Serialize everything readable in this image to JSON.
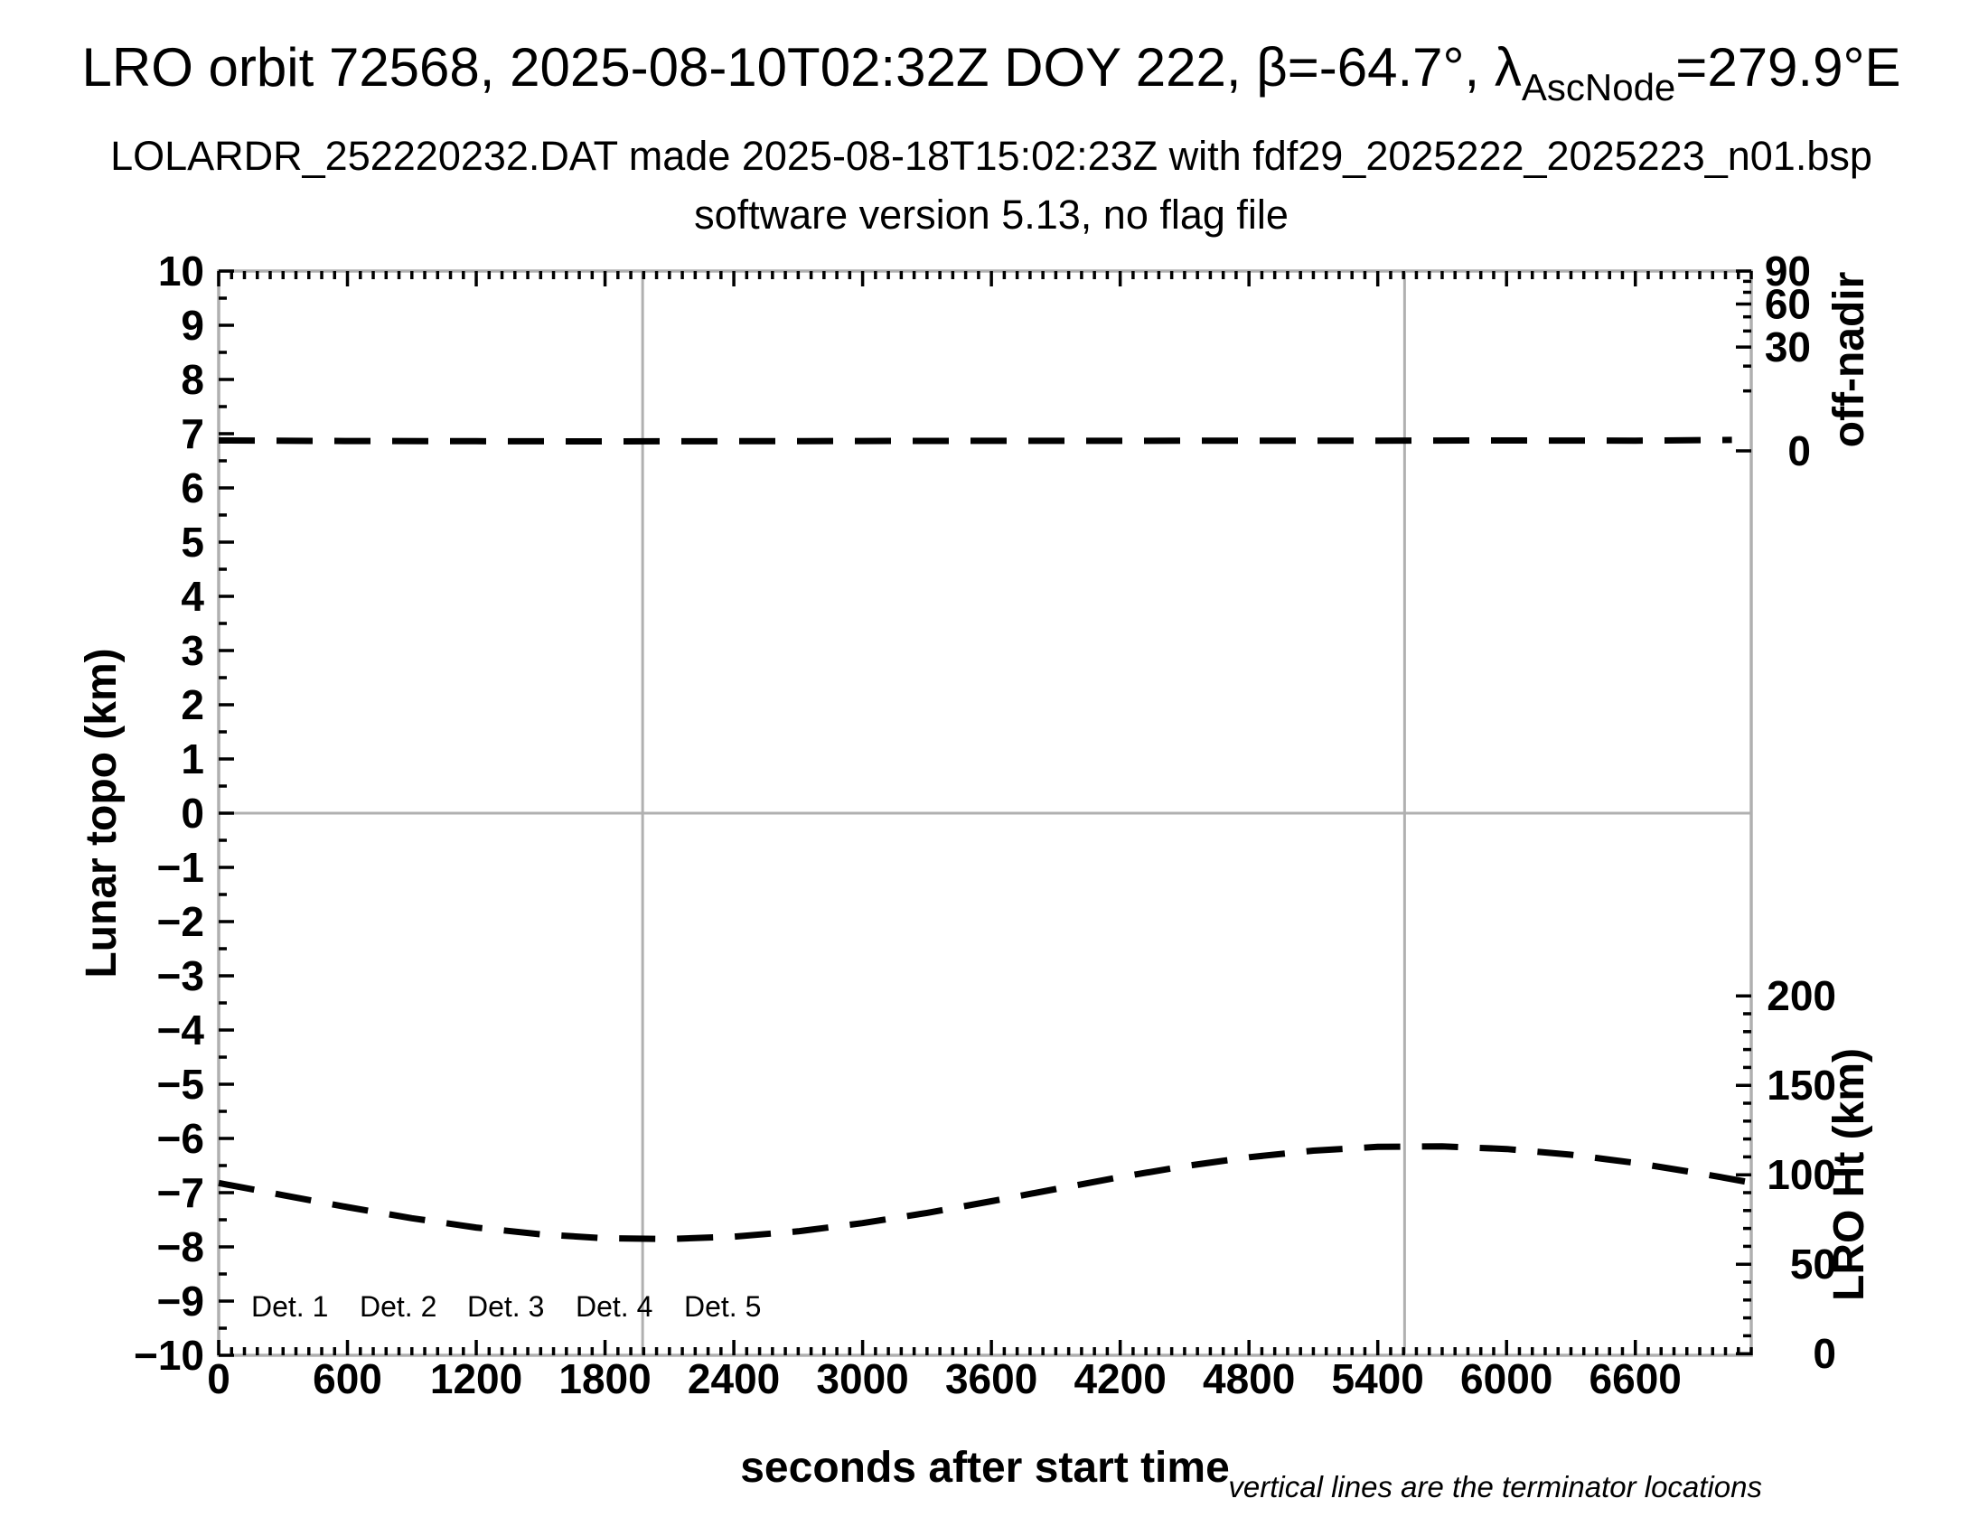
{
  "header": {
    "title": {
      "prefix": "LRO orbit 72568, 2025-08-10T02:32Z DOY 222, β=-64.7°, λ",
      "subscript": "AscNode",
      "suffix": "=279.9°E"
    },
    "subtitle": "LOLARDR_252220232.DAT made 2025-08-18T15:02:23Z with fdf29_2025222_2025223_n01.bsp",
    "software_line": "software version 5.13, no flag file"
  },
  "chart_data": {
    "type": "line",
    "title": "LRO orbit 72568, 2025-08-10T02:32Z DOY 222, β=-64.7°, λ_AscNode=279.9°E",
    "xlabel": "seconds after start time",
    "ylabel_left": "Lunar topo (km)",
    "ylabel_right_top": "off-nadir",
    "ylabel_right_bottom": "LRO Ht (km)",
    "footnote": "vertical lines are the terminator locations",
    "xlim": [
      0,
      7140
    ],
    "x_major_ticks": [
      0,
      600,
      1200,
      1800,
      2400,
      3000,
      3600,
      4200,
      4800,
      5400,
      6000,
      6600
    ],
    "x_minor_step": 60,
    "ylim_left": [
      -10,
      10
    ],
    "y_left_major_step": 1,
    "y_left_minor_step": 0.5,
    "off_nadir_axis": {
      "labels": [
        90,
        60,
        30,
        0
      ],
      "minor_step": 10,
      "scale": "sqrt",
      "max_deg": 90
    },
    "lro_ht_axis": {
      "labels": [
        200,
        150,
        100,
        50,
        0
      ],
      "minor_step": 10,
      "km_range": [
        0,
        200
      ]
    },
    "grid": {
      "zero_line_left": 0,
      "line_color": "#b0b0b0"
    },
    "terminator_lines_s": [
      1975,
      5525
    ],
    "series": [
      {
        "name": "off-nadir angle",
        "units": "deg",
        "axis": "off_nadir",
        "style": "dashed",
        "color": "#000000",
        "points": [
          [
            0,
            0.3
          ],
          [
            600,
            0.27
          ],
          [
            1200,
            0.26
          ],
          [
            1800,
            0.25
          ],
          [
            2400,
            0.26
          ],
          [
            3000,
            0.27
          ],
          [
            3600,
            0.28
          ],
          [
            4200,
            0.28
          ],
          [
            4800,
            0.29
          ],
          [
            5400,
            0.29
          ],
          [
            6000,
            0.3
          ],
          [
            6600,
            0.29
          ],
          [
            7050,
            0.33
          ]
        ]
      },
      {
        "name": "LRO height",
        "units": "km",
        "axis": "lro_ht",
        "style": "dashed",
        "color": "#000000",
        "points": [
          [
            0,
            95.4
          ],
          [
            300,
            88.6
          ],
          [
            600,
            81.9
          ],
          [
            900,
            75.7
          ],
          [
            1200,
            70.5
          ],
          [
            1500,
            66.7
          ],
          [
            1800,
            64.5
          ],
          [
            2100,
            64.1
          ],
          [
            2400,
            65.4
          ],
          [
            2700,
            68.4
          ],
          [
            3000,
            73.0
          ],
          [
            3300,
            78.7
          ],
          [
            3600,
            85.2
          ],
          [
            3900,
            92.0
          ],
          [
            4200,
            98.7
          ],
          [
            4500,
            104.8
          ],
          [
            4800,
            109.8
          ],
          [
            5100,
            113.5
          ],
          [
            5400,
            115.6
          ],
          [
            5700,
            115.9
          ],
          [
            6000,
            114.4
          ],
          [
            6300,
            111.2
          ],
          [
            6600,
            106.6
          ],
          [
            6900,
            100.8
          ],
          [
            7140,
            95.6
          ]
        ]
      }
    ],
    "legend": {
      "items": [
        {
          "label": "Det. 1",
          "color": "#000000"
        },
        {
          "label": "Det. 2",
          "color": "#0000ff"
        },
        {
          "label": "Det. 3",
          "color": "#00dd00"
        },
        {
          "label": "Det. 4",
          "color": "#ffa500"
        },
        {
          "label": "Det. 5",
          "color": "#ff0000"
        }
      ]
    },
    "colors": {
      "frame": "#b0b0b0",
      "ticks": "#000000",
      "terminator": "#b0b0b0",
      "zero_line": "#b0b0b0",
      "curve": "#000000"
    }
  }
}
